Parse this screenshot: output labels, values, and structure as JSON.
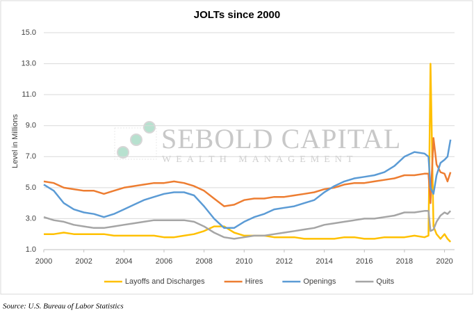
{
  "chart_data": {
    "type": "line",
    "title": "JOLTs since 2000",
    "y_label": "Level in Millions",
    "watermark": [
      "SEBOLD CAPITAL",
      "WEALTH MANAGEMENT"
    ],
    "source": "Source: U.S. Bureau of Labor Statistics",
    "x": [
      2000,
      2000.5,
      2001,
      2001.5,
      2002,
      2002.5,
      2003,
      2003.5,
      2004,
      2004.5,
      2005,
      2005.5,
      2006,
      2006.5,
      2007,
      2007.5,
      2008,
      2008.5,
      2009,
      2009.5,
      2010,
      2010.5,
      2011,
      2011.5,
      2012,
      2012.5,
      2013,
      2013.5,
      2014,
      2014.5,
      2015,
      2015.5,
      2016,
      2016.5,
      2017,
      2017.5,
      2018,
      2018.5,
      2019,
      2019.2,
      2019.3,
      2019.45,
      2019.6,
      2019.8,
      2020,
      2020.15,
      2020.3
    ],
    "series": [
      {
        "name": "Layoffs and Discharges",
        "color": "#ffc000",
        "values": [
          2.0,
          2.0,
          2.1,
          2.0,
          2.0,
          2.0,
          2.0,
          1.9,
          1.9,
          1.9,
          1.9,
          1.9,
          1.8,
          1.8,
          1.9,
          2.0,
          2.2,
          2.5,
          2.5,
          2.1,
          1.9,
          1.9,
          1.9,
          1.8,
          1.8,
          1.8,
          1.7,
          1.7,
          1.7,
          1.7,
          1.8,
          1.8,
          1.7,
          1.7,
          1.8,
          1.8,
          1.8,
          1.9,
          1.8,
          1.9,
          13.0,
          2.5,
          2.0,
          1.7,
          2.0,
          1.7,
          1.5
        ]
      },
      {
        "name": "Hires",
        "color": "#ed7d31",
        "values": [
          5.4,
          5.3,
          5.0,
          4.9,
          4.8,
          4.8,
          4.6,
          4.8,
          5.0,
          5.1,
          5.2,
          5.3,
          5.3,
          5.4,
          5.3,
          5.1,
          4.8,
          4.3,
          3.8,
          3.9,
          4.2,
          4.3,
          4.3,
          4.4,
          4.4,
          4.5,
          4.6,
          4.7,
          4.9,
          5.0,
          5.2,
          5.3,
          5.3,
          5.4,
          5.5,
          5.6,
          5.8,
          5.8,
          5.9,
          5.9,
          4.0,
          8.2,
          6.5,
          6.0,
          5.9,
          5.4,
          6.0
        ]
      },
      {
        "name": "Openings",
        "color": "#5b9bd5",
        "values": [
          5.2,
          4.8,
          4.0,
          3.6,
          3.4,
          3.3,
          3.1,
          3.3,
          3.6,
          3.9,
          4.2,
          4.4,
          4.6,
          4.7,
          4.7,
          4.5,
          3.8,
          3.0,
          2.4,
          2.4,
          2.8,
          3.1,
          3.3,
          3.6,
          3.7,
          3.8,
          4.0,
          4.2,
          4.7,
          5.1,
          5.4,
          5.6,
          5.7,
          5.8,
          6.0,
          6.4,
          7.0,
          7.3,
          7.2,
          7.0,
          5.0,
          4.6,
          5.8,
          6.6,
          6.8,
          7.0,
          8.1
        ]
      },
      {
        "name": "Quits",
        "color": "#a5a5a5",
        "values": [
          3.1,
          2.9,
          2.8,
          2.6,
          2.5,
          2.4,
          2.4,
          2.5,
          2.6,
          2.7,
          2.8,
          2.9,
          2.9,
          2.9,
          2.9,
          2.8,
          2.5,
          2.1,
          1.8,
          1.7,
          1.8,
          1.9,
          1.9,
          2.0,
          2.1,
          2.2,
          2.3,
          2.4,
          2.6,
          2.7,
          2.8,
          2.9,
          3.0,
          3.0,
          3.1,
          3.2,
          3.4,
          3.4,
          3.5,
          3.5,
          2.2,
          2.3,
          2.8,
          3.2,
          3.4,
          3.3,
          3.5
        ]
      }
    ],
    "xlim": [
      2000,
      2020.5
    ],
    "xticks": [
      2000,
      2002,
      2004,
      2006,
      2008,
      2010,
      2012,
      2014,
      2016,
      2018,
      2020
    ],
    "ylim": [
      1,
      15
    ],
    "yticks": [
      {
        "value": 1,
        "label": "1.0"
      },
      {
        "value": 3,
        "label": "3.0"
      },
      {
        "value": 5,
        "label": "5.0"
      },
      {
        "value": 7,
        "label": "7.0"
      },
      {
        "value": 9,
        "label": "9.0"
      },
      {
        "value": 11,
        "label": "11.0"
      },
      {
        "value": 13,
        "label": "13.0"
      },
      {
        "value": 15,
        "label": "15.0"
      }
    ],
    "grid": true,
    "legend": "bottom"
  }
}
